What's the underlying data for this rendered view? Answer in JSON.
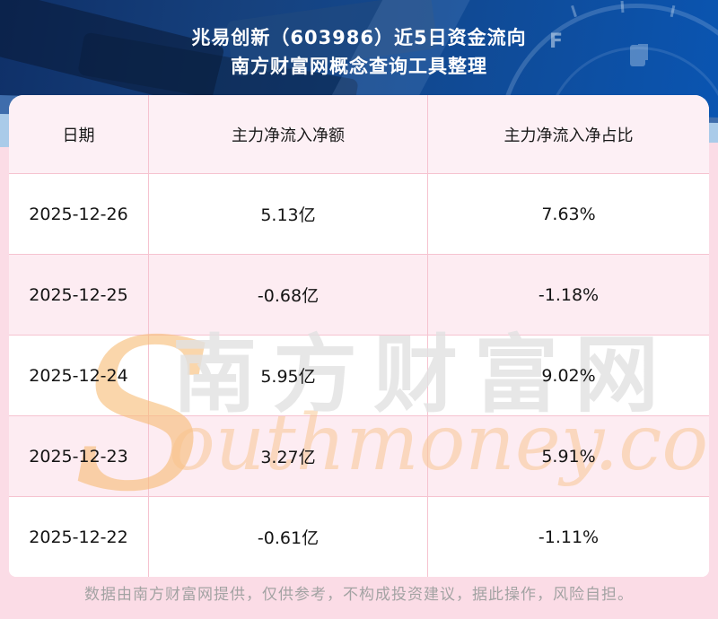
{
  "header": {
    "title_line1": "兆易创新（603986）近5日资金流向",
    "title_line2": "南方财富网概念查询工具整理",
    "background": {
      "gauge_label": "F"
    }
  },
  "chart_data": {
    "type": "table",
    "title": "兆易创新（603986）近5日资金流向",
    "subtitle": "南方财富网概念查询工具整理",
    "columns": [
      "日期",
      "主力净流入净额",
      "主力净流入净占比"
    ],
    "rows": [
      [
        "2025-12-26",
        "5.13亿",
        "7.63%"
      ],
      [
        "2025-12-25",
        "-0.68亿",
        "-1.18%"
      ],
      [
        "2025-12-24",
        "5.95亿",
        "9.02%"
      ],
      [
        "2025-12-23",
        "3.27亿",
        "5.91%"
      ],
      [
        "2025-12-22",
        "-0.61亿",
        "-1.11%"
      ]
    ],
    "legend_position": "none",
    "grid": true
  },
  "watermark": {
    "cn": "南方财富网",
    "en_initial": "S",
    "en_rest": "outhmoney.com"
  },
  "footer": {
    "disclaimer": "数据由南方财富网提供，仅供参考，不构成投资建议，据此操作，风险自担。"
  },
  "colors": {
    "header_navy": "#16427f",
    "accent_blue": "#0a55b2",
    "light_blue_stripe": "#aacbe9",
    "page_pink": "#fbdce6",
    "table_header_pink": "#fdf0f5",
    "row_alt_pink": "#fdecf2",
    "row_white": "#ffffff",
    "border_pink": "#f6c3d0",
    "title_text": "#ffffff",
    "cell_text": "#141414",
    "watermark_orange": "#f9c48b",
    "watermark_gray": "#e2e2e2",
    "footer_text": "#a3a3a3"
  }
}
